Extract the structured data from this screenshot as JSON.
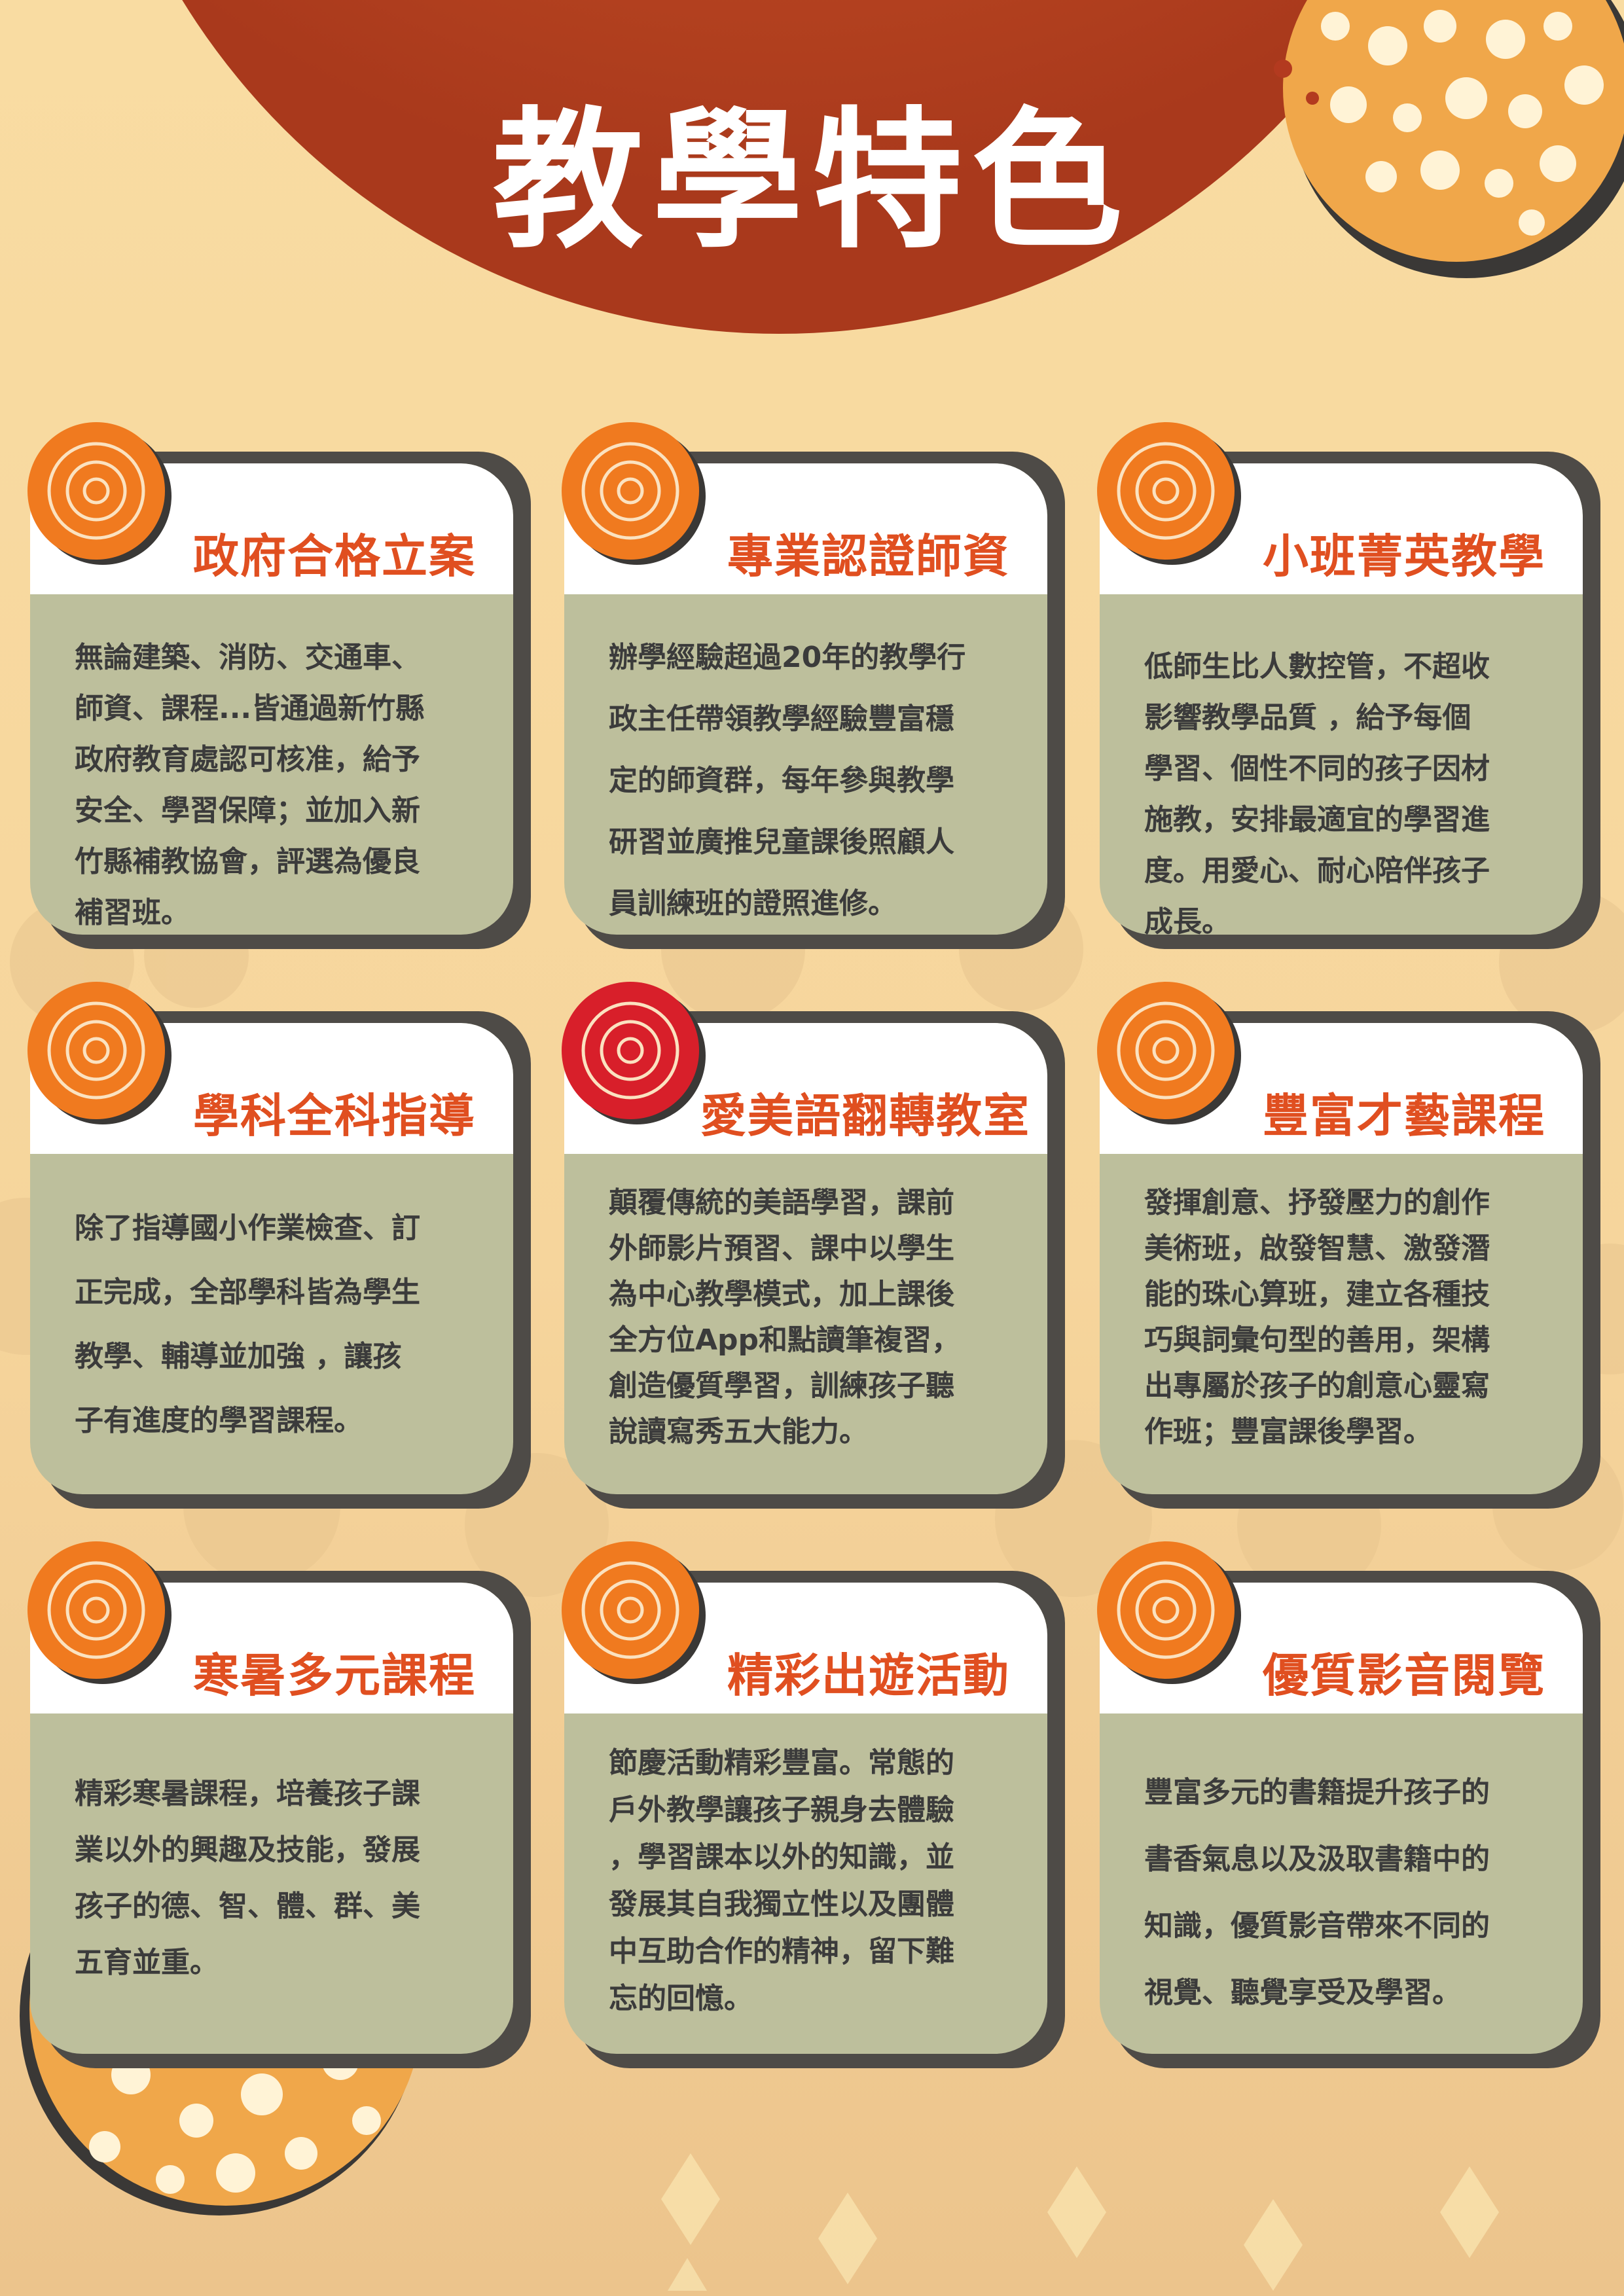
{
  "page": {
    "title": "教學特色"
  },
  "colors": {
    "background": "#f9dca2",
    "banner": "#c24a23",
    "card_body": "#bdbf9c",
    "card_shadow": "#4e4b47",
    "card_title": "#e04f20",
    "badge_orange": "#f07a1f",
    "badge_red": "#d81f2a"
  },
  "cards": [
    {
      "title": "政府合格立案",
      "text": "無論建築、消防、交通車、\n師資、課程...皆通過新竹縣\n政府教育處認可核准，給予\n安全、學習保障；並加入新\n竹縣補教協會，評選為優良\n補習班。",
      "icon": "swirl-badge-icon"
    },
    {
      "title": "專業認證師資",
      "text": "辦學經驗超過20年的教學行\n政主任帶領教學經驗豐富穩\n定的師資群，每年參與教學\n研習並廣推兒童課後照顧人\n員訓練班的證照進修。",
      "icon": "swirl-badge-icon"
    },
    {
      "title": "小班菁英教學",
      "text": "低師生比人數控管，不超收\n影響教學品質 ，給予每個\n學習、個性不同的孩子因材\n施教，安排最適宜的學習進\n度。用愛心、耐心陪伴孩子\n成長。",
      "icon": "swirl-badge-icon"
    },
    {
      "title": "學科全科指導",
      "text": "除了指導國小作業檢查、訂\n正完成，全部學科皆為學生\n教學、輔導並加強 ，讓孩\n子有進度的學習課程。",
      "icon": "swirl-badge-icon"
    },
    {
      "title": "愛美語翻轉教室",
      "text": "顛覆傳統的美語學習，課前\n外師影片預習、課中以學生\n為中心教學模式，加上課後\n全方位App和點讀筆複習，\n創造優質學習，訓練孩子聽\n說讀寫秀五大能力。",
      "icon": "swirl-badge-icon"
    },
    {
      "title": "豐富才藝課程",
      "text": "發揮創意、抒發壓力的創作\n美術班，啟發智慧、激發潛\n能的珠心算班，建立各種技\n巧與詞彙句型的善用，架構\n出專屬於孩子的創意心靈寫\n作班；豐富課後學習。",
      "icon": "swirl-badge-icon"
    },
    {
      "title": "寒暑多元課程",
      "text": "精彩寒暑課程，培養孩子課\n業以外的興趣及技能，發展\n孩子的德、智、體、群、美\n五育並重。",
      "icon": "swirl-badge-icon"
    },
    {
      "title": "精彩出遊活動",
      "text": "節慶活動精彩豐富。常態的\n戶外教學讓孩子親身去體驗\n，學習課本以外的知識，並\n發展其自我獨立性以及團體\n中互助合作的精神，留下難\n忘的回憶。",
      "icon": "swirl-badge-icon"
    },
    {
      "title": "優質影音閱覽",
      "text": "豐富多元的書籍提升孩子的\n書香氣息以及汲取書籍中的\n知識，優質影音帶來不同的\n視覺、聽覺享受及學習。",
      "icon": "swirl-badge-icon"
    }
  ]
}
